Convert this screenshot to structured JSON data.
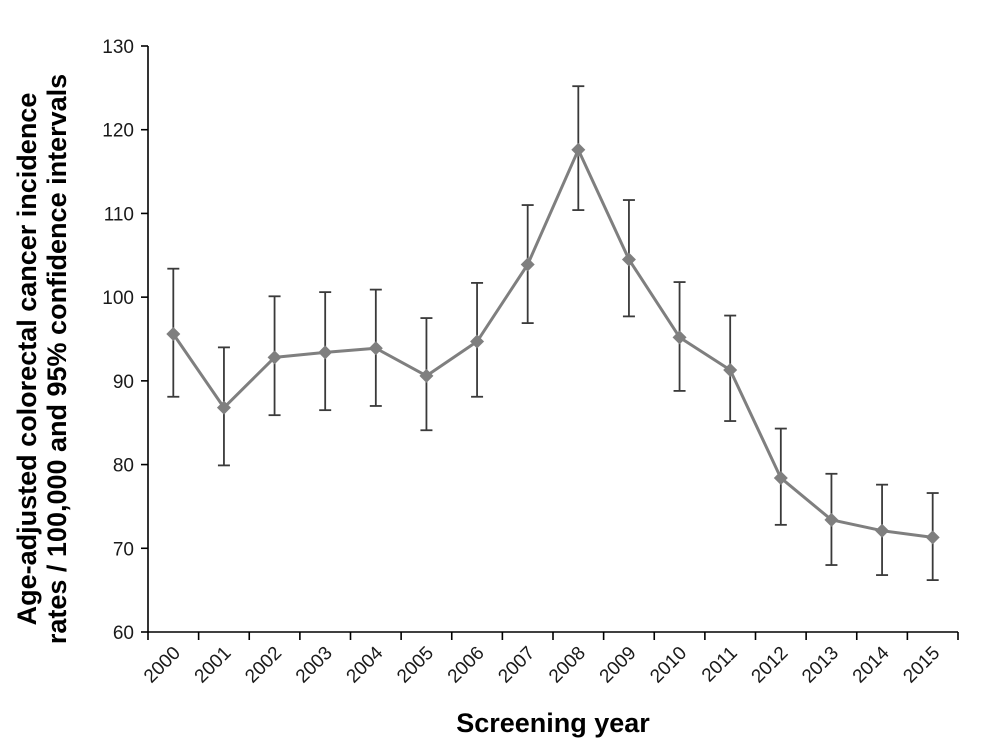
{
  "chart_data": {
    "type": "line",
    "title": "",
    "xlabel": "Screening year",
    "ylabel_line1": "Age-adjusted colorectal cancer incidence",
    "ylabel_line2": "rates / 100,000 and 95% confidence intervals",
    "ylim": [
      60,
      130
    ],
    "ytick_step": 10,
    "yticks": [
      "60",
      "70",
      "80",
      "90",
      "100",
      "110",
      "120",
      "130"
    ],
    "categories": [
      "2000",
      "2001",
      "2002",
      "2003",
      "2004",
      "2005",
      "2006",
      "2007",
      "2008",
      "2009",
      "2010",
      "2011",
      "2012",
      "2013",
      "2014",
      "2015"
    ],
    "series": [
      {
        "values": [
          95.6,
          86.8,
          92.8,
          93.4,
          93.9,
          90.6,
          94.7,
          103.9,
          117.6,
          104.5,
          95.2,
          91.3,
          78.4,
          73.4,
          72.1,
          71.3
        ],
        "ci_lower": [
          88.1,
          79.9,
          85.9,
          86.5,
          87.0,
          84.1,
          88.1,
          96.9,
          110.4,
          97.7,
          88.8,
          85.2,
          72.8,
          68.0,
          66.8,
          66.2
        ],
        "ci_upper": [
          103.4,
          94.0,
          100.1,
          100.6,
          100.9,
          97.5,
          101.7,
          111.0,
          125.2,
          111.6,
          101.8,
          97.8,
          84.3,
          78.9,
          77.6,
          76.6
        ],
        "marker": "diamond",
        "color": "#7f7f7f"
      }
    ],
    "grid": false,
    "legend": "none"
  },
  "colors": {
    "axis": "#000000",
    "series": "#7f7f7f",
    "errorbar": "#3a3a3a"
  }
}
